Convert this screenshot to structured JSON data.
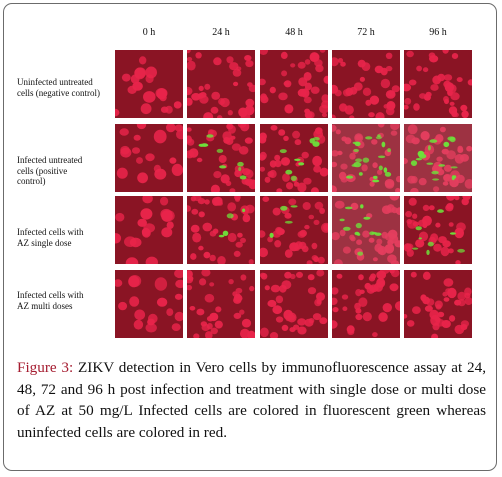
{
  "figure": {
    "columns": [
      "0 h",
      "24 h",
      "48 h",
      "72 h",
      "96 h"
    ],
    "rows": [
      {
        "label": "Uninfected untreated cells (negative control)",
        "label_lines": [
          "Uninfected untreated",
          "cells (negative control)"
        ]
      },
      {
        "label": "Infected untreated cells (positive control)",
        "label_lines": [
          "Infected untreated",
          "cells (positive",
          "control)"
        ]
      },
      {
        "label": "Infected cells with AZ single dose",
        "label_lines": [
          "Infected cells with",
          "AZ single dose"
        ]
      },
      {
        "label": "Infected cells with AZ multi doses",
        "label_lines": [
          "Infected cells with",
          "AZ multi doses"
        ]
      }
    ],
    "green_level": [
      [
        0,
        0,
        0,
        0,
        0
      ],
      [
        0,
        2,
        2,
        5,
        4
      ],
      [
        0,
        1,
        1,
        3,
        2
      ],
      [
        0,
        0,
        0,
        0,
        0
      ]
    ],
    "colors": {
      "background_red": "#8a1424",
      "cell_red": "#e8244a",
      "infected_green": "#6ee03a",
      "caption_label": "#a51c30"
    }
  },
  "caption": {
    "label": "Figure 3:",
    "text": " ZIKV detection in Vero cells by immunofluorescence assay at 24, 48, 72 and 96 h post infection and treatment with single dose or multi dose of AZ at 50 mg/L Infected cells are colored in fluorescent green whereas uninfected cells are colored in red."
  }
}
